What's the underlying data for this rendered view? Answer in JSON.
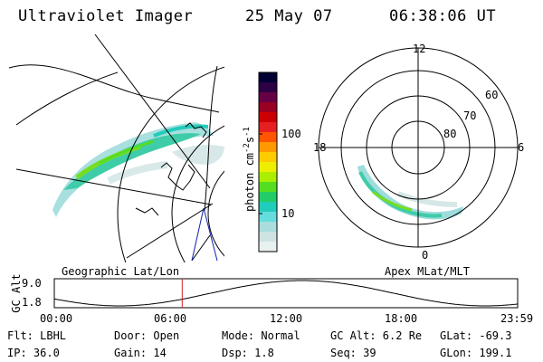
{
  "header": {
    "title": "Ultraviolet Imager",
    "date": "25 May 07",
    "time": "06:38:06 UT"
  },
  "left_panel": {
    "label": "Geographic Lat/Lon"
  },
  "right_panel": {
    "label": "Apex MLat/MLT",
    "mlt_labels": {
      "top": "12",
      "left": "18",
      "right": "6",
      "bottom": "0"
    },
    "lat_labels": [
      "60",
      "70",
      "80"
    ]
  },
  "colorbar": {
    "unit": "photon cm",
    "unit_sup1": "-2",
    "unit_mid": "s",
    "unit_sup2": "-1",
    "tick_100": "100",
    "tick_10": "10",
    "colors": [
      "#000033",
      "#2b0044",
      "#660044",
      "#990022",
      "#cc0000",
      "#e62020",
      "#ff5500",
      "#ff9900",
      "#ffcc00",
      "#eeee00",
      "#aaee00",
      "#55dd22",
      "#22cc66",
      "#22ccbb",
      "#66dddd",
      "#aadddd",
      "#cfe3e3",
      "#e8f0f0"
    ]
  },
  "altitude_plot": {
    "ylabel": "GC Alt",
    "ymax": "9.0",
    "ymin": "1.8",
    "current_time_fraction": 0.276,
    "ticks": [
      "00:00",
      "06:00",
      "12:00",
      "18:00",
      "23:59"
    ]
  },
  "info": {
    "flt": "Flt: LBHL",
    "ip": "IP: 36.0",
    "door": "Door: Open",
    "gain": "Gain: 14",
    "mode": "Mode: Normal",
    "dsp": "Dsp:    1.8",
    "gcalt": "GC Alt: 6.2 Re",
    "seq": "Seq: 39",
    "glat": "GLat: -69.3",
    "glon": "GLon: 199.1"
  }
}
